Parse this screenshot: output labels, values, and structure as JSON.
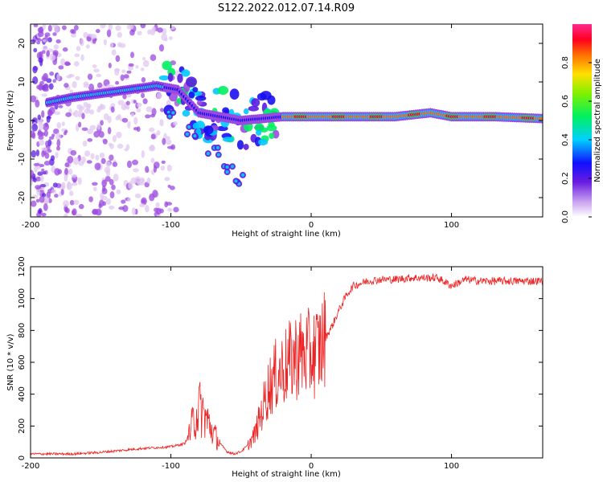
{
  "figure_title": "S122.2022.012.07.14.R09",
  "colors": {
    "colormap": [
      "#ffffff",
      "#e0c8f0",
      "#9b4ae0",
      "#5a1ce0",
      "#1a10f0",
      "#00c8ff",
      "#00f060",
      "#90f000",
      "#ffe000",
      "#ff7000",
      "#ff0020",
      "#ff30a0"
    ],
    "snr_line": "#ee2222"
  },
  "chart_data": [
    {
      "type": "heatmap",
      "title": "S122.2022.012.07.14.R09",
      "xlabel": "Height of straight line (km)",
      "ylabel": "Frequency (Hz)",
      "xlim": [
        -200,
        165
      ],
      "ylim": [
        -25,
        25
      ],
      "x_ticks": [
        -200,
        -100,
        0,
        100
      ],
      "y_ticks": [
        -20,
        -10,
        0,
        10,
        20
      ],
      "colorbar": {
        "label": "Normalized spectral amplitude",
        "range": [
          0,
          1
        ],
        "ticks": [
          0.0,
          0.2,
          0.4,
          0.6,
          0.8
        ]
      },
      "ridge": [
        {
          "x": -190,
          "y": 4.5
        },
        {
          "x": -170,
          "y": 6
        },
        {
          "x": -150,
          "y": 7
        },
        {
          "x": -130,
          "y": 8
        },
        {
          "x": -110,
          "y": 9
        },
        {
          "x": -95,
          "y": 8
        },
        {
          "x": -80,
          "y": 2
        },
        {
          "x": -65,
          "y": 1
        },
        {
          "x": -50,
          "y": 0
        },
        {
          "x": -35,
          "y": 0.5
        },
        {
          "x": -20,
          "y": 1
        },
        {
          "x": 0,
          "y": 1
        },
        {
          "x": 30,
          "y": 1
        },
        {
          "x": 60,
          "y": 1
        },
        {
          "x": 85,
          "y": 2
        },
        {
          "x": 100,
          "y": 1
        },
        {
          "x": 130,
          "y": 1
        },
        {
          "x": 165,
          "y": 0.5
        }
      ],
      "branch": [
        {
          "x": -100,
          "y": 2
        },
        {
          "x": -85,
          "y": -3
        },
        {
          "x": -70,
          "y": -8
        },
        {
          "x": -60,
          "y": -12
        },
        {
          "x": -52,
          "y": -15
        }
      ]
    },
    {
      "type": "line",
      "xlabel": "Height of straight line (km)",
      "ylabel": "SNR (10 * v/v)",
      "xlim": [
        -200,
        165
      ],
      "ylim": [
        0,
        1200
      ],
      "x_ticks": [
        -200,
        -100,
        0,
        100
      ],
      "y_ticks": [
        0,
        200,
        400,
        600,
        800,
        1000,
        1200
      ],
      "series": [
        {
          "x": [
            -200,
            -170,
            -150,
            -120,
            -100,
            -90,
            -85,
            -80,
            -75,
            -70,
            -65,
            -60,
            -55,
            -50,
            -45,
            -40,
            -35,
            -30,
            -25,
            -20,
            -15,
            -10,
            -5,
            0,
            5,
            10,
            15,
            20,
            25,
            30,
            40,
            50,
            60,
            70,
            80,
            90,
            100,
            110,
            120,
            130,
            140,
            150,
            165
          ],
          "y": [
            25,
            25,
            35,
            60,
            70,
            90,
            200,
            320,
            250,
            160,
            90,
            40,
            25,
            40,
            80,
            150,
            300,
            450,
            520,
            560,
            600,
            650,
            650,
            650,
            680,
            750,
            830,
            930,
            1020,
            1080,
            1110,
            1120,
            1120,
            1130,
            1130,
            1130,
            1080,
            1120,
            1110,
            1110,
            1110,
            1110,
            1110
          ]
        }
      ]
    }
  ]
}
